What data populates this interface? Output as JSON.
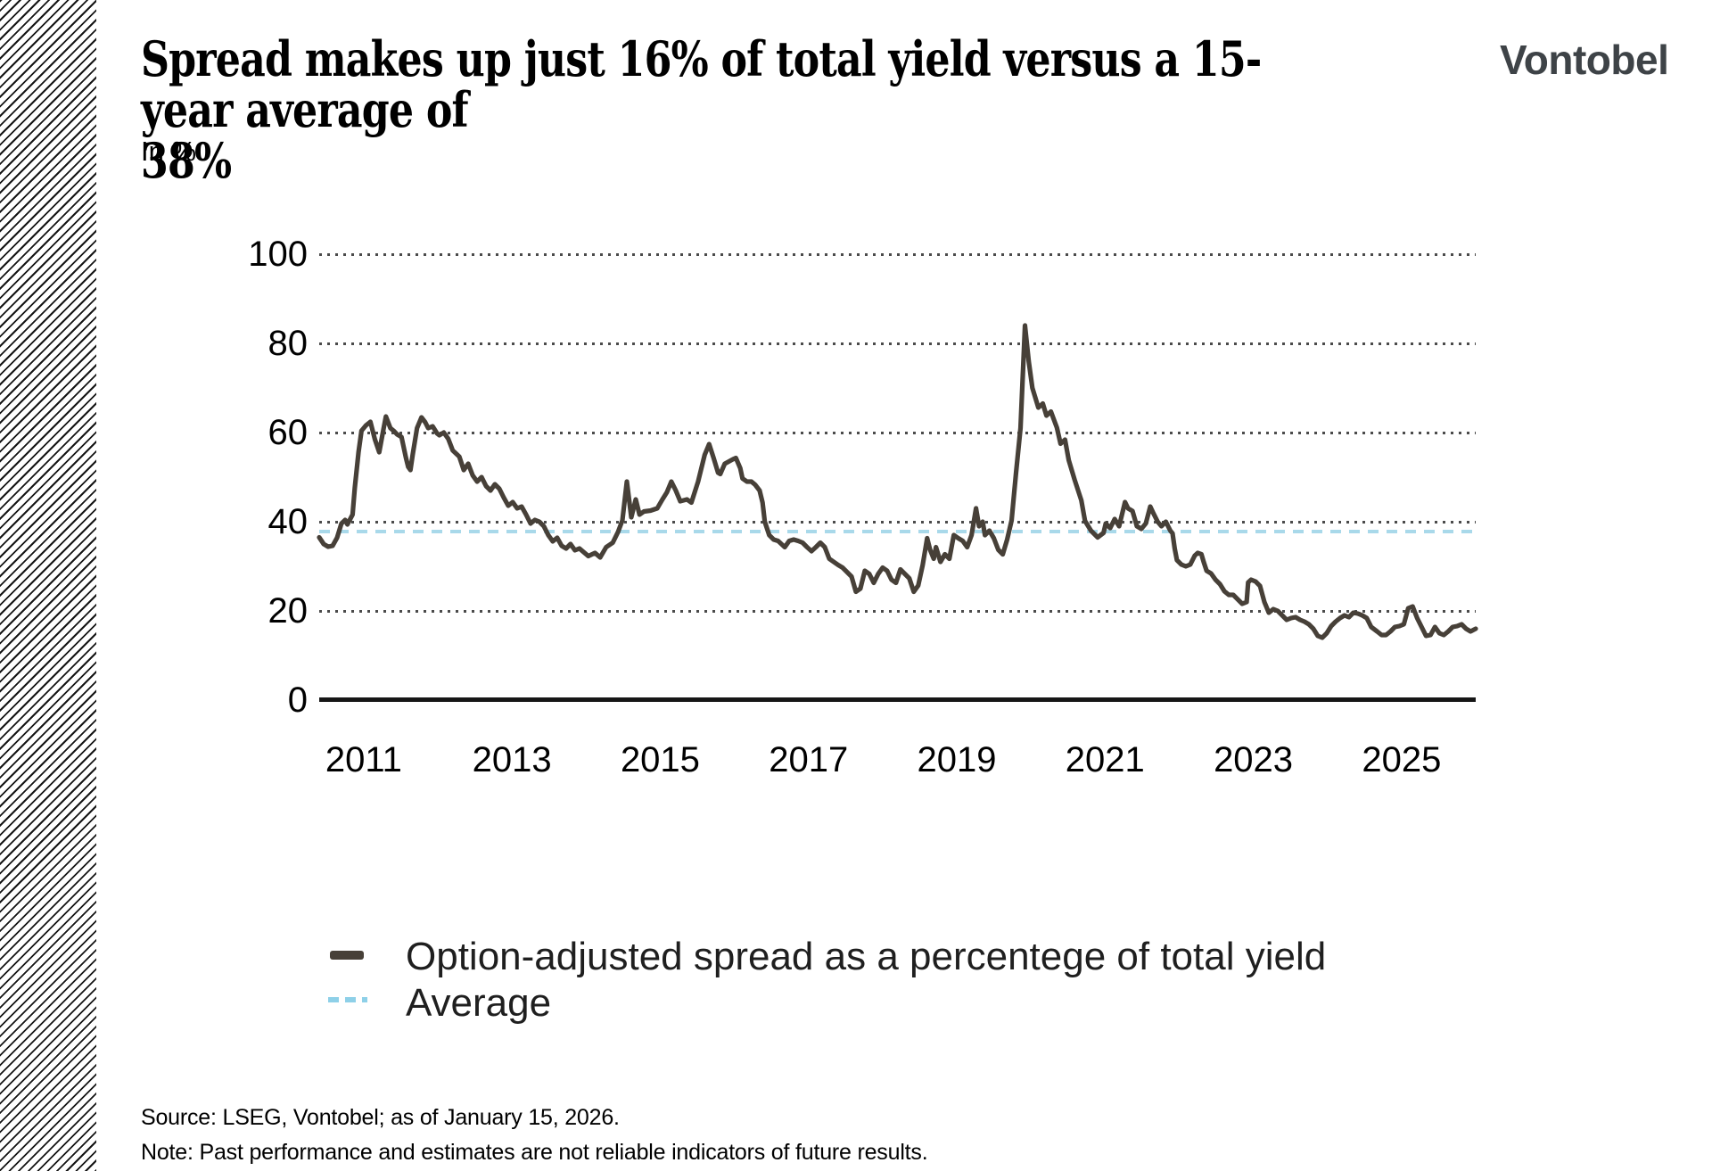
{
  "header": {
    "title": "Spread makes up just 16% of total yield versus a 15-year average of\n38%",
    "subtitle": "In %",
    "brand": "Vontobel"
  },
  "legend": {
    "items": [
      {
        "label": "Option-adjusted spread as a percentege of total yield",
        "swatch": "solid-dash",
        "color": "#474038"
      },
      {
        "label": "Average",
        "swatch": "blue-dashed",
        "color": "#8ed0e8"
      }
    ]
  },
  "footer": {
    "source": "Source: LSEG, Vontobel; as of January 15, 2026.",
    "note": "Note: Past performance and estimates are not reliable indicators of future results."
  },
  "colors": {
    "series_line": "#474038",
    "average_line": "#a9d9ea",
    "gridline": "#4b4b4b",
    "axis": "#161616",
    "logo": "#3e4347"
  },
  "chart_data": {
    "type": "line",
    "title": "Spread makes up just 16% of total yield versus a 15-year average of 38%",
    "xlabel": "",
    "ylabel": "In %",
    "xlim": [
      2010.4,
      2026.0
    ],
    "ylim": [
      0,
      110
    ],
    "x_ticks": [
      2011,
      2013,
      2015,
      2017,
      2019,
      2021,
      2023,
      2025
    ],
    "y_ticks": [
      0,
      20,
      40,
      60,
      80,
      100
    ],
    "grid": "horizontal dotted",
    "legend_position": "bottom-left",
    "average_value": 37.8,
    "series": [
      {
        "name": "Option-adjusted spread as a percentege of total yield",
        "style": "solid",
        "points": [
          [
            2010.4,
            36.5
          ],
          [
            2010.46,
            35.0
          ],
          [
            2010.52,
            34.4
          ],
          [
            2010.58,
            34.6
          ],
          [
            2010.64,
            36.4
          ],
          [
            2010.7,
            39.6
          ],
          [
            2010.75,
            40.4
          ],
          [
            2010.78,
            39.4
          ],
          [
            2010.85,
            41.6
          ],
          [
            2010.88,
            47.6
          ],
          [
            2010.93,
            55.6
          ],
          [
            2010.97,
            60.4
          ],
          [
            2011.03,
            61.6
          ],
          [
            2011.09,
            62.4
          ],
          [
            2011.15,
            58.5
          ],
          [
            2011.21,
            55.6
          ],
          [
            2011.27,
            61.0
          ],
          [
            2011.3,
            63.6
          ],
          [
            2011.36,
            61.0
          ],
          [
            2011.41,
            60.3
          ],
          [
            2011.45,
            59.6
          ],
          [
            2011.51,
            59.0
          ],
          [
            2011.57,
            54.3
          ],
          [
            2011.6,
            52.3
          ],
          [
            2011.63,
            51.6
          ],
          [
            2011.66,
            55.0
          ],
          [
            2011.72,
            61.0
          ],
          [
            2011.78,
            63.4
          ],
          [
            2011.83,
            62.3
          ],
          [
            2011.87,
            61.0
          ],
          [
            2011.93,
            61.4
          ],
          [
            2011.99,
            59.8
          ],
          [
            2012.02,
            59.4
          ],
          [
            2012.08,
            60.0
          ],
          [
            2012.14,
            58.6
          ],
          [
            2012.2,
            56.0
          ],
          [
            2012.29,
            54.6
          ],
          [
            2012.35,
            51.6
          ],
          [
            2012.41,
            53.0
          ],
          [
            2012.47,
            50.4
          ],
          [
            2012.53,
            49.0
          ],
          [
            2012.59,
            50.0
          ],
          [
            2012.65,
            48.0
          ],
          [
            2012.71,
            47.0
          ],
          [
            2012.77,
            48.4
          ],
          [
            2012.83,
            47.4
          ],
          [
            2012.89,
            45.4
          ],
          [
            2012.95,
            43.6
          ],
          [
            2013.01,
            44.4
          ],
          [
            2013.07,
            43.0
          ],
          [
            2013.13,
            43.4
          ],
          [
            2013.19,
            41.6
          ],
          [
            2013.25,
            39.6
          ],
          [
            2013.31,
            40.4
          ],
          [
            2013.37,
            40.0
          ],
          [
            2013.43,
            39.0
          ],
          [
            2013.49,
            37.0
          ],
          [
            2013.55,
            35.6
          ],
          [
            2013.61,
            36.4
          ],
          [
            2013.67,
            34.6
          ],
          [
            2013.73,
            34.0
          ],
          [
            2013.79,
            35.0
          ],
          [
            2013.85,
            33.6
          ],
          [
            2013.91,
            34.0
          ],
          [
            2014.03,
            32.3
          ],
          [
            2014.12,
            33.0
          ],
          [
            2014.19,
            32.0
          ],
          [
            2014.27,
            34.3
          ],
          [
            2014.36,
            35.3
          ],
          [
            2014.43,
            37.7
          ],
          [
            2014.49,
            40.3
          ],
          [
            2014.55,
            49.0
          ],
          [
            2014.61,
            41.0
          ],
          [
            2014.67,
            45.0
          ],
          [
            2014.72,
            41.6
          ],
          [
            2014.78,
            42.3
          ],
          [
            2014.87,
            42.5
          ],
          [
            2014.96,
            43.0
          ],
          [
            2015.03,
            45.0
          ],
          [
            2015.09,
            46.6
          ],
          [
            2015.15,
            49.0
          ],
          [
            2015.21,
            47.0
          ],
          [
            2015.27,
            44.6
          ],
          [
            2015.36,
            45.0
          ],
          [
            2015.42,
            44.3
          ],
          [
            2015.51,
            49.0
          ],
          [
            2015.6,
            55.0
          ],
          [
            2015.66,
            57.4
          ],
          [
            2015.72,
            54.3
          ],
          [
            2015.78,
            51.0
          ],
          [
            2015.81,
            50.7
          ],
          [
            2015.87,
            53.0
          ],
          [
            2015.98,
            54.0
          ],
          [
            2016.02,
            54.3
          ],
          [
            2016.08,
            52.0
          ],
          [
            2016.11,
            49.7
          ],
          [
            2016.17,
            49.0
          ],
          [
            2016.23,
            49.0
          ],
          [
            2016.28,
            48.3
          ],
          [
            2016.34,
            47.0
          ],
          [
            2016.38,
            44.3
          ],
          [
            2016.41,
            40.0
          ],
          [
            2016.47,
            37.0
          ],
          [
            2016.53,
            36.0
          ],
          [
            2016.59,
            35.7
          ],
          [
            2016.68,
            34.3
          ],
          [
            2016.74,
            35.7
          ],
          [
            2016.8,
            36.0
          ],
          [
            2016.86,
            35.7
          ],
          [
            2016.92,
            35.3
          ],
          [
            2016.98,
            34.3
          ],
          [
            2017.04,
            33.4
          ],
          [
            2017.1,
            34.3
          ],
          [
            2017.16,
            35.3
          ],
          [
            2017.22,
            34.3
          ],
          [
            2017.28,
            31.7
          ],
          [
            2017.34,
            31.0
          ],
          [
            2017.4,
            30.3
          ],
          [
            2017.46,
            29.7
          ],
          [
            2017.52,
            28.7
          ],
          [
            2017.58,
            27.7
          ],
          [
            2017.64,
            24.3
          ],
          [
            2017.7,
            25.0
          ],
          [
            2017.76,
            29.0
          ],
          [
            2017.82,
            28.3
          ],
          [
            2017.88,
            26.3
          ],
          [
            2017.94,
            28.3
          ],
          [
            2018.0,
            29.7
          ],
          [
            2018.06,
            29.0
          ],
          [
            2018.12,
            27.0
          ],
          [
            2018.18,
            26.3
          ],
          [
            2018.24,
            29.3
          ],
          [
            2018.3,
            28.3
          ],
          [
            2018.36,
            27.3
          ],
          [
            2018.42,
            24.3
          ],
          [
            2018.48,
            25.7
          ],
          [
            2018.54,
            30.3
          ],
          [
            2018.6,
            36.3
          ],
          [
            2018.64,
            33.7
          ],
          [
            2018.69,
            31.7
          ],
          [
            2018.72,
            34.3
          ],
          [
            2018.78,
            31.0
          ],
          [
            2018.84,
            32.7
          ],
          [
            2018.9,
            31.7
          ],
          [
            2018.96,
            37.0
          ],
          [
            2019.02,
            36.3
          ],
          [
            2019.08,
            35.7
          ],
          [
            2019.14,
            34.3
          ],
          [
            2019.2,
            37.0
          ],
          [
            2019.26,
            43.0
          ],
          [
            2019.3,
            39.0
          ],
          [
            2019.35,
            40.0
          ],
          [
            2019.38,
            37.0
          ],
          [
            2019.44,
            38.0
          ],
          [
            2019.5,
            36.3
          ],
          [
            2019.56,
            33.7
          ],
          [
            2019.62,
            32.7
          ],
          [
            2019.68,
            36.0
          ],
          [
            2019.74,
            40.3
          ],
          [
            2019.8,
            51.0
          ],
          [
            2019.86,
            61.0
          ],
          [
            2019.92,
            84.0
          ],
          [
            2019.97,
            76.0
          ],
          [
            2020.02,
            70.0
          ],
          [
            2020.1,
            65.6
          ],
          [
            2020.16,
            66.5
          ],
          [
            2020.21,
            63.8
          ],
          [
            2020.27,
            64.7
          ],
          [
            2020.35,
            61.1
          ],
          [
            2020.4,
            57.5
          ],
          [
            2020.46,
            58.4
          ],
          [
            2020.51,
            53.8
          ],
          [
            2020.59,
            49.4
          ],
          [
            2020.68,
            44.8
          ],
          [
            2020.73,
            40.2
          ],
          [
            2020.81,
            38.0
          ],
          [
            2020.9,
            36.5
          ],
          [
            2020.98,
            37.5
          ],
          [
            2021.01,
            39.6
          ],
          [
            2021.07,
            38.6
          ],
          [
            2021.13,
            40.6
          ],
          [
            2021.19,
            39.0
          ],
          [
            2021.27,
            44.4
          ],
          [
            2021.31,
            43.0
          ],
          [
            2021.37,
            42.4
          ],
          [
            2021.43,
            39.0
          ],
          [
            2021.49,
            38.4
          ],
          [
            2021.55,
            39.6
          ],
          [
            2021.61,
            43.4
          ],
          [
            2021.65,
            42.0
          ],
          [
            2021.71,
            40.0
          ],
          [
            2021.76,
            39.0
          ],
          [
            2021.82,
            40.0
          ],
          [
            2021.88,
            38.0
          ],
          [
            2021.91,
            37.4
          ],
          [
            2021.94,
            34.0
          ],
          [
            2021.97,
            31.4
          ],
          [
            2022.03,
            30.4
          ],
          [
            2022.09,
            30.0
          ],
          [
            2022.15,
            30.4
          ],
          [
            2022.21,
            32.4
          ],
          [
            2022.25,
            33.0
          ],
          [
            2022.3,
            32.7
          ],
          [
            2022.33,
            31.0
          ],
          [
            2022.37,
            29.0
          ],
          [
            2022.43,
            28.4
          ],
          [
            2022.49,
            27.0
          ],
          [
            2022.55,
            26.0
          ],
          [
            2022.61,
            24.4
          ],
          [
            2022.67,
            23.6
          ],
          [
            2022.73,
            23.6
          ],
          [
            2022.79,
            22.6
          ],
          [
            2022.85,
            21.6
          ],
          [
            2022.91,
            22.0
          ],
          [
            2022.93,
            26.4
          ],
          [
            2022.97,
            27.0
          ],
          [
            2023.03,
            26.6
          ],
          [
            2023.09,
            25.6
          ],
          [
            2023.15,
            22.0
          ],
          [
            2023.21,
            19.6
          ],
          [
            2023.27,
            20.4
          ],
          [
            2023.33,
            20.0
          ],
          [
            2023.39,
            19.0
          ],
          [
            2023.45,
            18.0
          ],
          [
            2023.51,
            18.4
          ],
          [
            2023.57,
            18.6
          ],
          [
            2023.63,
            18.0
          ],
          [
            2023.69,
            17.6
          ],
          [
            2023.75,
            17.0
          ],
          [
            2023.81,
            16.0
          ],
          [
            2023.87,
            14.4
          ],
          [
            2023.93,
            14.0
          ],
          [
            2023.99,
            15.0
          ],
          [
            2024.05,
            16.6
          ],
          [
            2024.11,
            17.6
          ],
          [
            2024.17,
            18.4
          ],
          [
            2024.23,
            19.0
          ],
          [
            2024.29,
            18.6
          ],
          [
            2024.35,
            19.6
          ],
          [
            2024.41,
            19.4
          ],
          [
            2024.47,
            19.0
          ],
          [
            2024.53,
            18.4
          ],
          [
            2024.59,
            16.4
          ],
          [
            2024.67,
            15.4
          ],
          [
            2024.73,
            14.6
          ],
          [
            2024.79,
            14.6
          ],
          [
            2024.85,
            15.4
          ],
          [
            2024.91,
            16.4
          ],
          [
            2024.97,
            16.6
          ],
          [
            2025.03,
            17.0
          ],
          [
            2025.09,
            20.6
          ],
          [
            2025.15,
            21.0
          ],
          [
            2025.21,
            18.4
          ],
          [
            2025.27,
            16.4
          ],
          [
            2025.33,
            14.4
          ],
          [
            2025.39,
            14.6
          ],
          [
            2025.45,
            16.4
          ],
          [
            2025.51,
            15.0
          ],
          [
            2025.57,
            14.6
          ],
          [
            2025.63,
            15.4
          ],
          [
            2025.69,
            16.4
          ],
          [
            2025.75,
            16.6
          ],
          [
            2025.81,
            17.0
          ],
          [
            2025.87,
            16.0
          ],
          [
            2025.93,
            15.4
          ],
          [
            2026.0,
            16.0
          ]
        ]
      },
      {
        "name": "Average",
        "style": "dashed",
        "value": 37.8
      }
    ]
  }
}
